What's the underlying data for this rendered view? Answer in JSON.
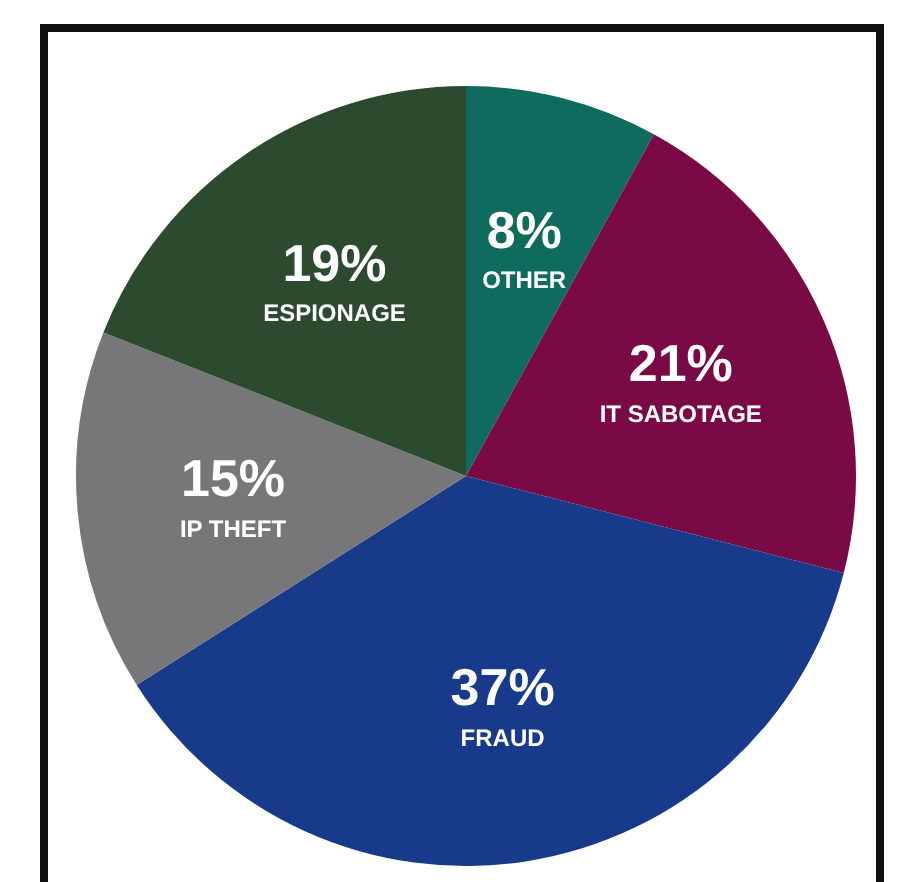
{
  "chart_data": {
    "type": "pie",
    "categories": [
      "OTHER",
      "IT SABOTAGE",
      "FRAUD",
      "IP THEFT",
      "ESPIONAGE"
    ],
    "values": [
      8,
      21,
      37,
      15,
      19
    ],
    "value_labels": [
      "8%",
      "21%",
      "37%",
      "15%",
      "19%"
    ],
    "colors": [
      "#0e6b5e",
      "#7a0a45",
      "#183a8a",
      "#77777a",
      "#2c4a2e"
    ],
    "legend": false
  }
}
